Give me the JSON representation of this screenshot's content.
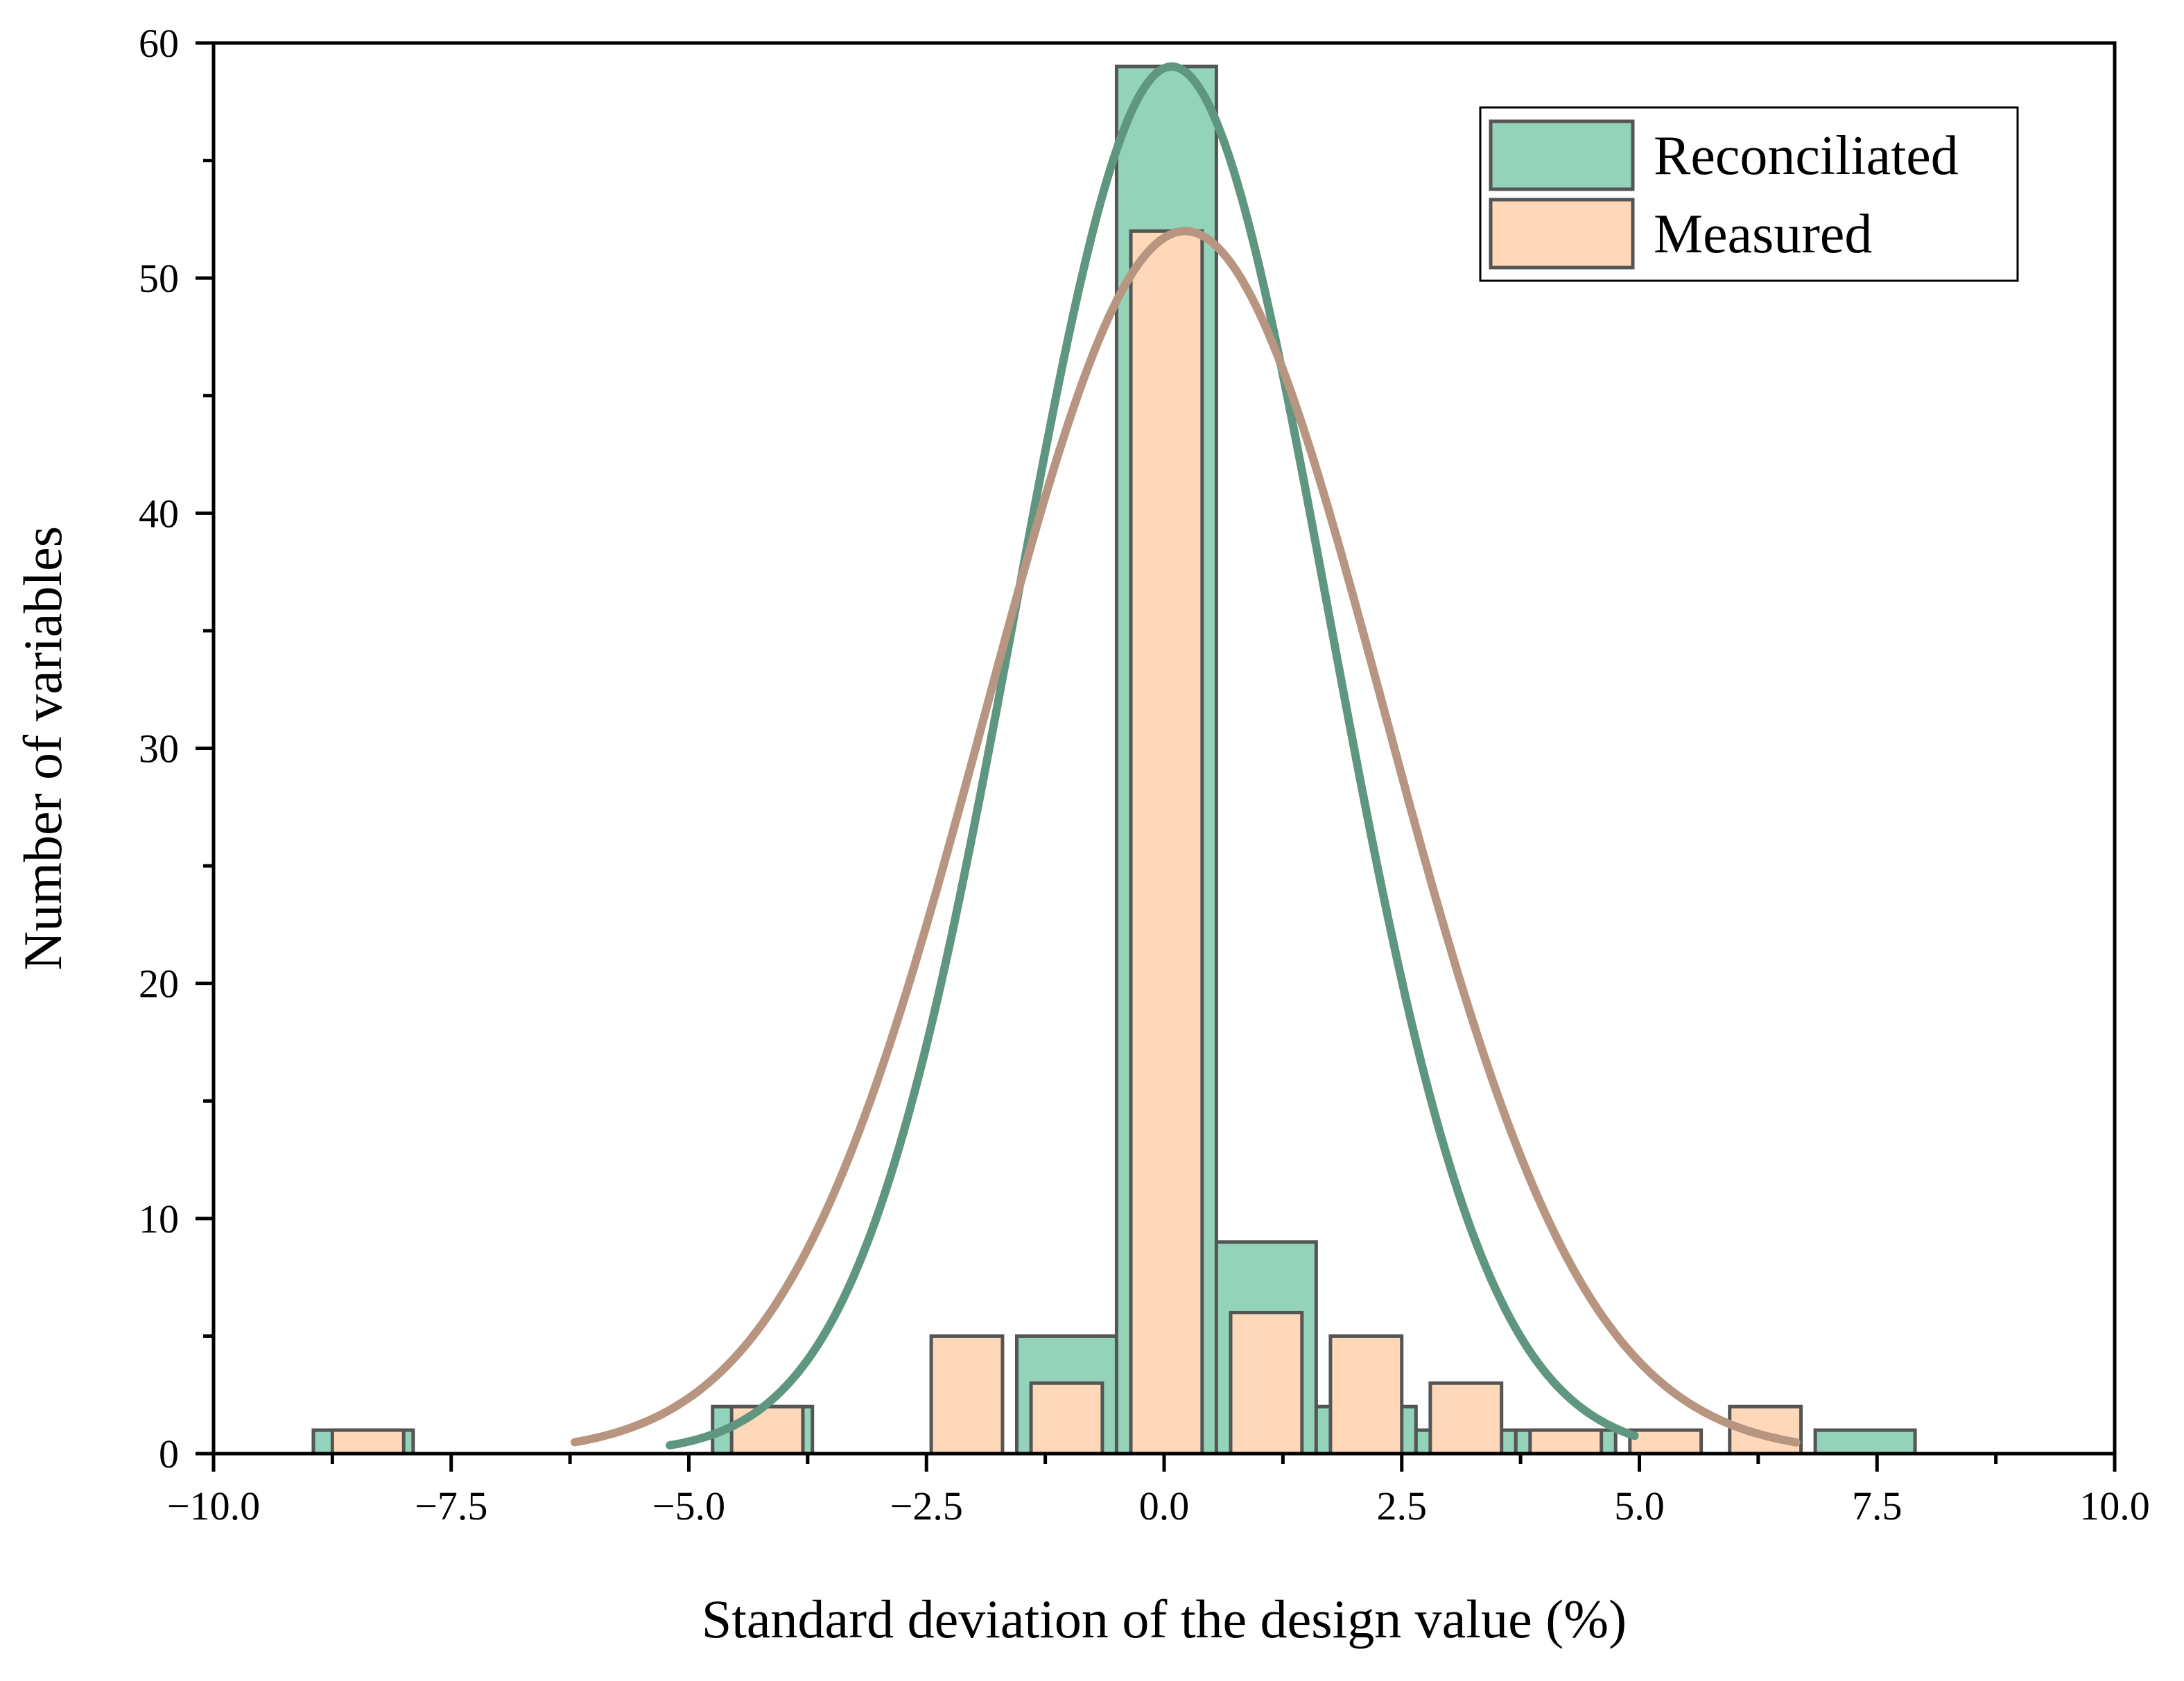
{
  "chart_data": {
    "type": "bar",
    "title": "",
    "xlabel": "Standard deviation of the design value (%)",
    "ylabel": "Number of variables",
    "xlim": [
      -10,
      10
    ],
    "ylim": [
      0,
      60
    ],
    "x_ticks": [
      -10,
      -7.5,
      -5,
      -2.5,
      0,
      2.5,
      5,
      7.5,
      10
    ],
    "x_tick_labels": [
      "−10.0",
      "−7.5",
      "−5.0",
      "−2.5",
      "0.0",
      "2.5",
      "5.0",
      "7.5",
      "10.0"
    ],
    "y_ticks": [
      0,
      10,
      20,
      30,
      40,
      50,
      60
    ],
    "y_tick_labels": [
      "0",
      "10",
      "20",
      "30",
      "40",
      "50",
      "60"
    ],
    "grid": false,
    "legend_position": "top-right",
    "series": [
      {
        "name": "Reconciliated",
        "color": "#93d3b9",
        "curve_color": "#5e9680",
        "bins": [
          {
            "x0": -8.95,
            "x1": -7.9,
            "count": 1
          },
          {
            "x0": -4.75,
            "x1": -3.7,
            "count": 2
          },
          {
            "x0": -1.55,
            "x1": -0.5,
            "count": 5
          },
          {
            "x0": -0.5,
            "x1": 0.55,
            "count": 59
          },
          {
            "x0": 0.55,
            "x1": 1.6,
            "count": 9
          },
          {
            "x0": 1.6,
            "x1": 2.65,
            "count": 2
          },
          {
            "x0": 2.65,
            "x1": 3.7,
            "count": 1
          },
          {
            "x0": 3.7,
            "x1": 4.75,
            "count": 1
          },
          {
            "x0": 6.85,
            "x1": 7.9,
            "count": 1
          }
        ],
        "fit": {
          "mean": 0.08,
          "sd": 1.65,
          "peak": 59,
          "x_range": [
            -5.2,
            4.95
          ]
        }
      },
      {
        "name": "Measured",
        "color": "#fed8b8",
        "curve_color": "#b89580",
        "bins": [
          {
            "x0": -8.75,
            "x1": -8.0,
            "count": 1
          },
          {
            "x0": -4.55,
            "x1": -3.8,
            "count": 2
          },
          {
            "x0": -2.45,
            "x1": -1.7,
            "count": 5
          },
          {
            "x0": -1.4,
            "x1": -0.65,
            "count": 3
          },
          {
            "x0": -0.35,
            "x1": 0.4,
            "count": 52
          },
          {
            "x0": 0.7,
            "x1": 1.45,
            "count": 6
          },
          {
            "x0": 1.75,
            "x1": 2.5,
            "count": 5
          },
          {
            "x0": 2.8,
            "x1": 3.55,
            "count": 3
          },
          {
            "x0": 3.85,
            "x1": 4.6,
            "count": 1
          },
          {
            "x0": 4.9,
            "x1": 5.65,
            "count": 1
          },
          {
            "x0": 5.95,
            "x1": 6.7,
            "count": 2
          }
        ],
        "fit": {
          "mean": 0.22,
          "sd": 2.1,
          "peak": 52,
          "x_range": [
            -6.2,
            6.65
          ]
        }
      }
    ]
  }
}
